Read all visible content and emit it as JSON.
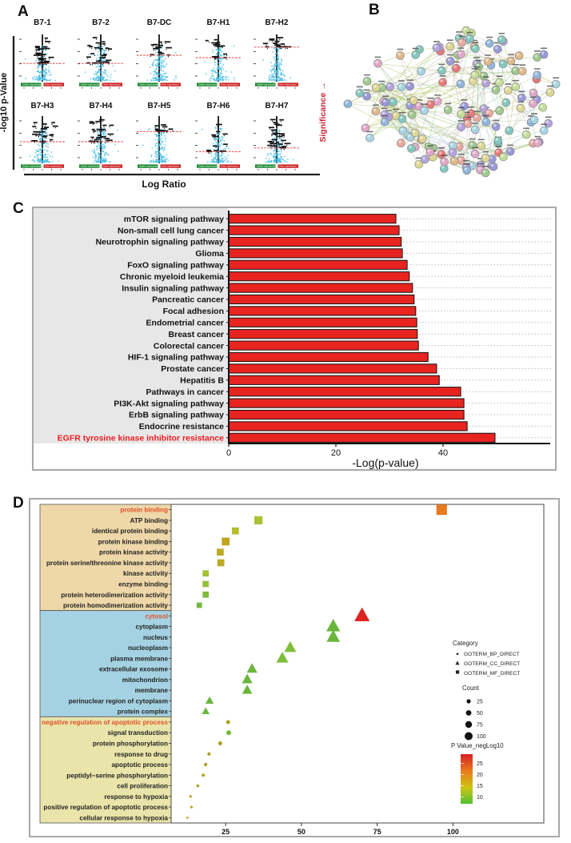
{
  "figure": {
    "panel_a_label": "A",
    "panel_b_label": "B",
    "panel_c_label": "C",
    "panel_d_label": "D"
  },
  "chart_data": [
    {
      "id": "A",
      "type": "scatter",
      "subtype": "volcano_small_multiples",
      "xlabel": "Log Ratio",
      "ylabel": "-log10 p-Value",
      "right_annotation": "Significance →",
      "under_label": "Under expressed",
      "over_label": "Over expressed",
      "point_color": "#4fc0e4",
      "sig_color": "#111111",
      "threshold_color": "#e03030",
      "under_color": "#1e8a34",
      "over_color": "#cc2222",
      "plots": [
        {
          "title": "B7-1",
          "threshold_frac": 0.62,
          "sig_count": 26
        },
        {
          "title": "B7-2",
          "threshold_frac": 0.62,
          "sig_count": 24
        },
        {
          "title": "B7-DC",
          "threshold_frac": 0.45,
          "sig_count": 12
        },
        {
          "title": "B7-H1",
          "threshold_frac": 0.5,
          "sig_count": 16
        },
        {
          "title": "B7-H2",
          "threshold_frac": 0.28,
          "sig_count": 14
        },
        {
          "title": "B7-H3",
          "threshold_frac": 0.55,
          "sig_count": 20
        },
        {
          "title": "B7-H4",
          "threshold_frac": 0.55,
          "sig_count": 24
        },
        {
          "title": "B7-H5",
          "threshold_frac": 0.34,
          "sig_count": 10
        },
        {
          "title": "B7-H6",
          "threshold_frac": 0.76,
          "sig_count": 11
        },
        {
          "title": "B7-H7",
          "threshold_frac": 0.68,
          "sig_count": 28
        }
      ]
    },
    {
      "id": "B",
      "type": "network",
      "node_count": 140,
      "satellite_count": 12,
      "node_palette": [
        "#9fc98f",
        "#8fb6dc",
        "#e8a8a0",
        "#b2a4dc",
        "#ddd694",
        "#83c7bd",
        "#dfb98a",
        "#a8d4e2",
        "#c5dd9a",
        "#e0a8c8",
        "#9898d8",
        "#e87878"
      ],
      "edge_palette": [
        "#b9bd5e",
        "#9cc06a",
        "#a8b6c6",
        "#cabb86",
        "#9dc3d6",
        "#c4c4c4",
        "#c9a8b8",
        "#8fbf88"
      ]
    },
    {
      "id": "C",
      "type": "bar",
      "orientation": "horizontal",
      "xlabel": "-Log(p-value)",
      "xlim": [
        0,
        57
      ],
      "xticks": [
        0,
        20,
        40
      ],
      "bar_color": "#e82420",
      "label_color": "#111111",
      "highlight_label_color": "#ed1c24",
      "highlight_index": 19,
      "categories": [
        "mTOR signaling pathway",
        "Non-small cell lung cancer",
        "Neurotrophin signaling pathway",
        "Glioma",
        "FoxO signaling pathway",
        "Chronic myeloid leukemia",
        "Insulin signaling pathway",
        "Pancreatic cancer",
        "Focal adhesion",
        "Endometrial cancer",
        "Breast cancer",
        "Colorectal cancer",
        "HIF-1 signaling pathway",
        "Prostate cancer",
        "Hepatitis B",
        "Pathways in cancer",
        "PI3K-Akt signaling pathway",
        "ErbB signaling pathway",
        "Endocrine resistance",
        "EGFR tyrosine kinase inhibitor resistance"
      ],
      "values": [
        31.2,
        31.8,
        32.2,
        32.4,
        33.3,
        33.7,
        34.3,
        34.6,
        34.9,
        35.1,
        35.2,
        35.4,
        37.2,
        38.8,
        39.3,
        43.3,
        43.9,
        43.9,
        44.5,
        49.7
      ]
    },
    {
      "id": "D",
      "type": "scatter",
      "subtype": "go_enrichment_dotplot",
      "xlim": [
        7,
        130
      ],
      "xticks": [
        25,
        50,
        75,
        100
      ],
      "highlight_label_color": "#e0502a",
      "groups": [
        {
          "name": "GOTERM_MF_DIRECT",
          "marker": "square",
          "bg": "#eed7a8",
          "terms": [
            {
              "label": "protein binding",
              "x": 96.3,
              "size": 13,
              "color": "#e8791e",
              "highlight": true
            },
            {
              "label": "ATP binding",
              "x": 35.8,
              "size": 10,
              "color": "#a9c32f",
              "highlight": false
            },
            {
              "label": "identical protein binding",
              "x": 28.2,
              "size": 8.5,
              "color": "#b5bf2b",
              "highlight": false
            },
            {
              "label": "protein kinase binding",
              "x": 25.0,
              "size": 9.5,
              "color": "#c0a51d",
              "highlight": false
            },
            {
              "label": "protein kinase activity",
              "x": 23.2,
              "size": 8.5,
              "color": "#bcab22",
              "highlight": false
            },
            {
              "label": "protein serine/threonine kinase activity",
              "x": 23.4,
              "size": 8.5,
              "color": "#bcab22",
              "highlight": false
            },
            {
              "label": "kinase activity",
              "x": 18.4,
              "size": 7.5,
              "color": "#a6c132",
              "highlight": false
            },
            {
              "label": "enzyme binding",
              "x": 18.4,
              "size": 7.5,
              "color": "#96c136",
              "highlight": false
            },
            {
              "label": "protein heterodimerization activity",
              "x": 18.4,
              "size": 7.5,
              "color": "#7fbc3b",
              "highlight": false
            },
            {
              "label": "protein homodimerization activity",
              "x": 16.3,
              "size": 6.5,
              "color": "#6fb83e",
              "highlight": false
            }
          ]
        },
        {
          "name": "GOTERM_CC_DIRECT",
          "marker": "triangle",
          "bg": "#a5d2e2",
          "terms": [
            {
              "label": "cytosol",
              "x": 70.0,
              "size": 16,
              "color": "#dc2420",
              "highlight": true
            },
            {
              "label": "cytoplasm",
              "x": 60.5,
              "size": 14.5,
              "color": "#6ab63d",
              "highlight": false
            },
            {
              "label": "nucleus",
              "x": 60.5,
              "size": 14,
              "color": "#6ab63d",
              "highlight": false
            },
            {
              "label": "nucleoplasm",
              "x": 46.3,
              "size": 12.5,
              "color": "#7fbe3b",
              "highlight": false
            },
            {
              "label": "plasma membrane",
              "x": 43.7,
              "size": 12.5,
              "color": "#7fbe3b",
              "highlight": false
            },
            {
              "label": "extracellular exosome",
              "x": 33.7,
              "size": 11,
              "color": "#6ab63d",
              "highlight": false
            },
            {
              "label": "mitochondrion",
              "x": 32.1,
              "size": 11,
              "color": "#6ab63d",
              "highlight": false
            },
            {
              "label": "membrane",
              "x": 32.1,
              "size": 10.5,
              "color": "#6ab63d",
              "highlight": false
            },
            {
              "label": "perinuclear region of cytoplasm",
              "x": 19.7,
              "size": 8.5,
              "color": "#6ab63d",
              "highlight": false
            },
            {
              "label": "protein complex",
              "x": 18.4,
              "size": 8,
              "color": "#6ab63d",
              "highlight": false
            }
          ]
        },
        {
          "name": "GOTERM_BP_DIRECT",
          "marker": "circle",
          "bg": "#e9e4a9",
          "terms": [
            {
              "label": "negative regulation of apoptotic process",
              "x": 25.8,
              "size": 5,
              "color": "#ab9f26",
              "highlight": true
            },
            {
              "label": "signal transduction",
              "x": 26.0,
              "size": 6,
              "color": "#74b93d",
              "highlight": false
            },
            {
              "label": "protein phosphorylation",
              "x": 23.2,
              "size": 5,
              "color": "#ab9f26",
              "highlight": false
            },
            {
              "label": "response to drug",
              "x": 19.5,
              "size": 4.2,
              "color": "#ab9f26",
              "highlight": false
            },
            {
              "label": "apoptotic process",
              "x": 18.4,
              "size": 4.2,
              "color": "#ab9f26",
              "highlight": false
            },
            {
              "label": "peptidyl−serine phosphorylation",
              "x": 17.6,
              "size": 4.2,
              "color": "#b3a524",
              "highlight": false
            },
            {
              "label": "cell proliferation",
              "x": 15.8,
              "size": 3.6,
              "color": "#b3a524",
              "highlight": false
            },
            {
              "label": "response to hypoxia",
              "x": 13.4,
              "size": 3.2,
              "color": "#b3a524",
              "highlight": false
            },
            {
              "label": "positive regulation of apoptotic process",
              "x": 13.7,
              "size": 3.2,
              "color": "#b3a524",
              "highlight": false
            },
            {
              "label": "cellular response to hypoxia",
              "x": 12.4,
              "size": 3,
              "color": "#c0b43a",
              "highlight": false
            }
          ]
        }
      ],
      "legend": {
        "category_title": "Category",
        "categories": [
          "GOTERM_BP_DIRECT",
          "GOTERM_CC_DIRECT",
          "GOTERM_MF_DIRECT"
        ],
        "count_title": "Count",
        "count_values": [
          25,
          50,
          75,
          100
        ],
        "pvalue_title": "P Value_negLog10",
        "pvalue_ticks": [
          25,
          20,
          15,
          10
        ],
        "gradient": [
          "#d61f26",
          "#e8791e",
          "#cfc414",
          "#52c032"
        ]
      }
    }
  ]
}
